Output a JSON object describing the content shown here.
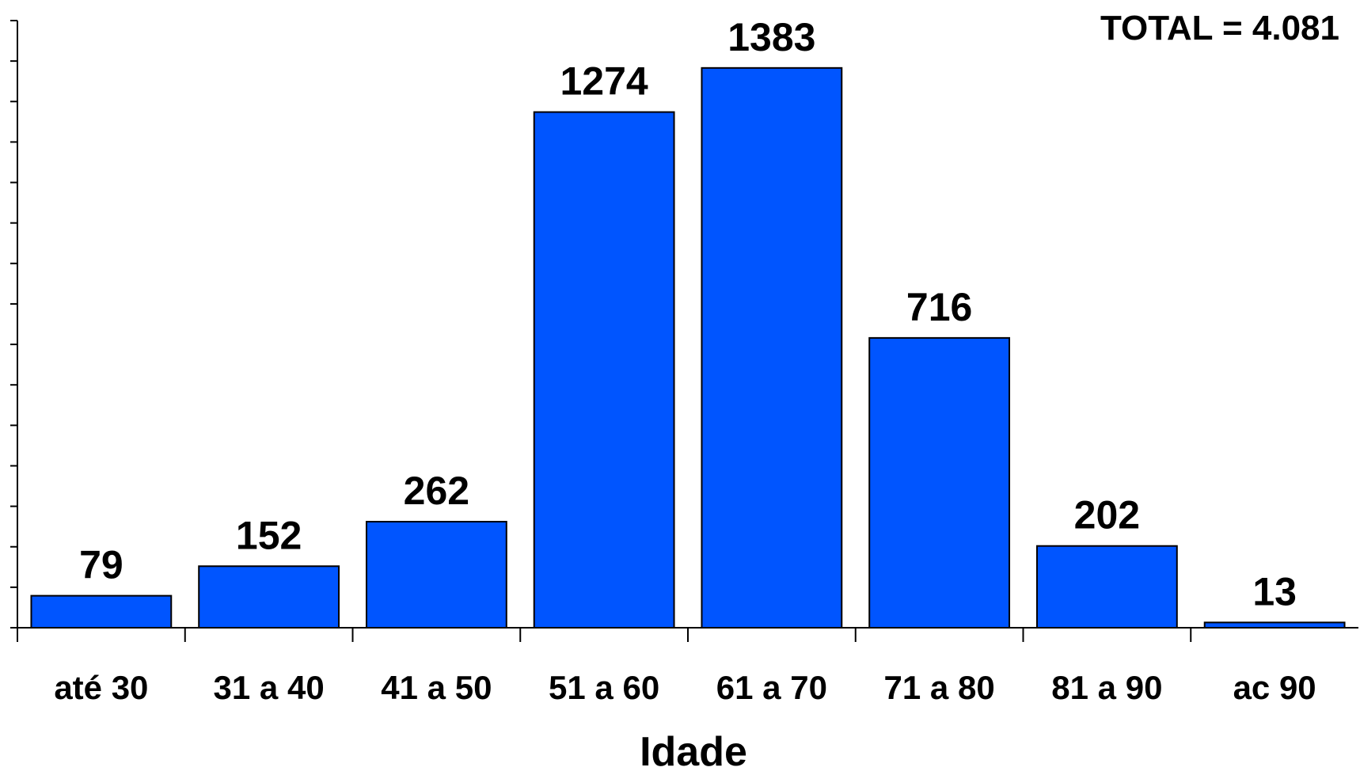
{
  "chart_data": {
    "type": "bar",
    "categories": [
      "até 30",
      "31 a 40",
      "41 a 50",
      "51 a 60",
      "61 a 70",
      "71 a 80",
      "81 a 90",
      "ac 90"
    ],
    "values": [
      79,
      152,
      262,
      1274,
      1383,
      716,
      202,
      13
    ],
    "data_labels": [
      "79",
      "152",
      "262",
      "1274",
      "1383",
      "716",
      "202",
      "13"
    ],
    "title": "",
    "annotation": "TOTAL = 4.081",
    "xlabel": "Idade",
    "ylabel": "",
    "ylim": [
      0,
      1500
    ],
    "y_tick_count": 15,
    "y_tick_labels_shown": false,
    "grid": false,
    "legend": "none",
    "colors": {
      "bar_fill": "#0055FF",
      "bar_stroke": "#000000",
      "axis": "#000000",
      "text": "#000000"
    }
  }
}
